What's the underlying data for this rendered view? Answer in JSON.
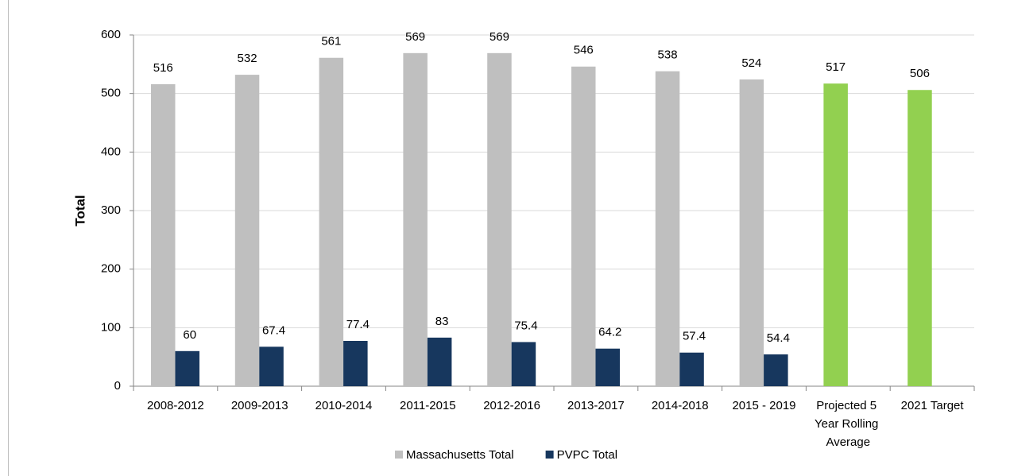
{
  "chart_data": {
    "type": "bar",
    "ylabel": "Total",
    "categories": [
      "2008-2012",
      "2009-2013",
      "2010-2014",
      "2011-2015",
      "2012-2016",
      "2013-2017",
      "2014-2018",
      "2015 - 2019",
      "Projected 5 Year Rolling Average",
      "2021 Target"
    ],
    "series": [
      {
        "name": "Massachusetts Total",
        "color": "#bfbfbf",
        "point_colors": [
          "#bfbfbf",
          "#bfbfbf",
          "#bfbfbf",
          "#bfbfbf",
          "#bfbfbf",
          "#bfbfbf",
          "#bfbfbf",
          "#bfbfbf",
          "#92d050",
          "#92d050"
        ],
        "values": [
          516,
          532,
          561,
          569,
          569,
          546,
          538,
          524,
          517,
          506
        ]
      },
      {
        "name": "PVPC Total",
        "color": "#17375e",
        "values": [
          60,
          67.4,
          77.4,
          83,
          75.4,
          64.2,
          57.4,
          54.4,
          null,
          null
        ]
      }
    ],
    "ylim": [
      0,
      600
    ],
    "yticks": [
      0,
      100,
      200,
      300,
      400,
      500,
      600
    ],
    "grid": true,
    "legend": "bottom"
  }
}
